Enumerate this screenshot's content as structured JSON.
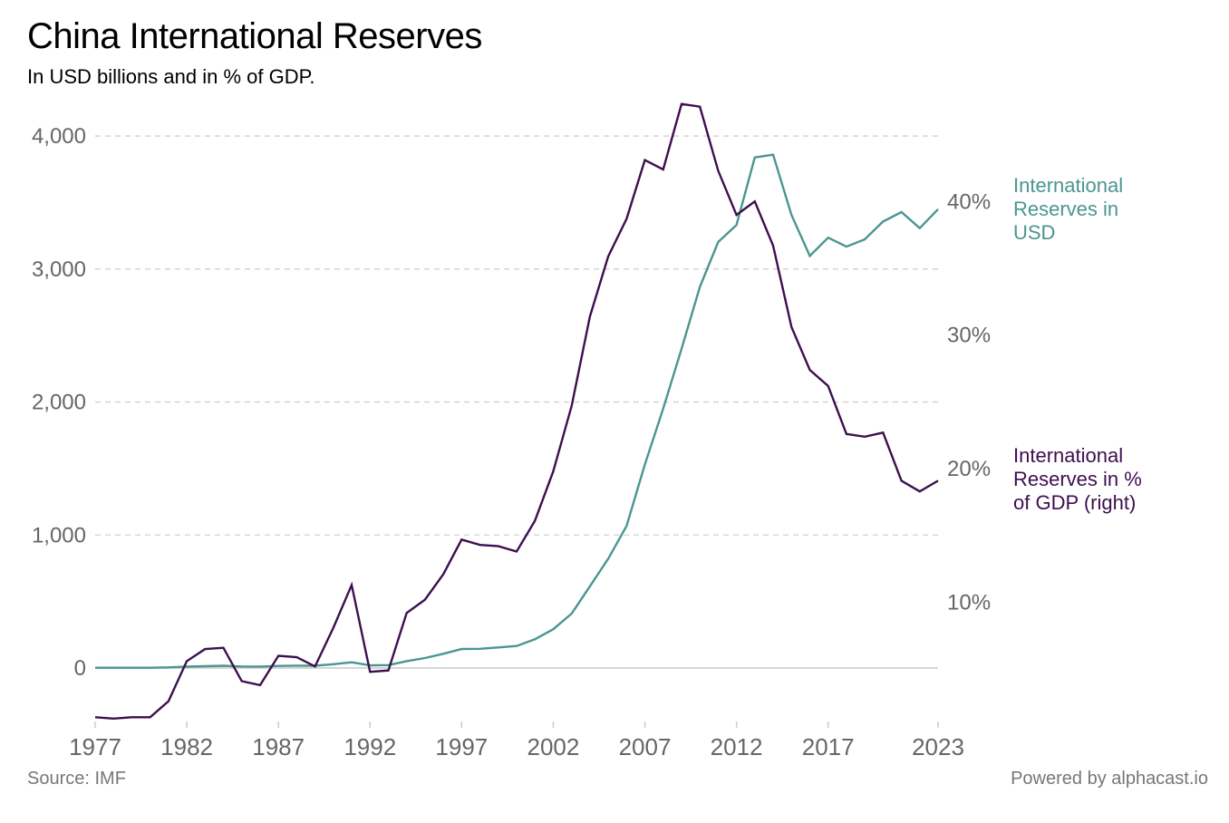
{
  "header": {
    "title": "China International Reserves",
    "subtitle": "In USD billions and in % of GDP."
  },
  "footer": {
    "source": "Source: IMF",
    "powered": "Powered by alphacast.io"
  },
  "chart_data": {
    "type": "line",
    "title": "China International Reserves",
    "subtitle": "In USD billions and in % of GDP.",
    "x": [
      1977,
      1978,
      1979,
      1980,
      1981,
      1982,
      1983,
      1984,
      1985,
      1986,
      1987,
      1988,
      1989,
      1990,
      1991,
      1992,
      1993,
      1994,
      1995,
      1996,
      1997,
      1998,
      1999,
      2000,
      2001,
      2002,
      2003,
      2004,
      2005,
      2006,
      2007,
      2008,
      2009,
      2010,
      2011,
      2012,
      2013,
      2014,
      2015,
      2016,
      2017,
      2018,
      2019,
      2020,
      2021,
      2022,
      2023
    ],
    "xticks": [
      "1977",
      "1982",
      "1987",
      "1992",
      "1997",
      "2002",
      "2007",
      "2012",
      "2017",
      "2023"
    ],
    "yticks": [
      {
        "v": 0,
        "label": "0"
      },
      {
        "v": 1000,
        "label": "1,000"
      },
      {
        "v": 2000,
        "label": "2,000"
      },
      {
        "v": 3000,
        "label": "3,000"
      },
      {
        "v": 4000,
        "label": "4,000"
      }
    ],
    "y2ticks": [
      {
        "v": 10,
        "label": "10%"
      },
      {
        "v": 20,
        "label": "20%"
      },
      {
        "v": 30,
        "label": "30%"
      },
      {
        "v": 40,
        "label": "40%"
      }
    ],
    "xlim": [
      1977,
      2023
    ],
    "ylim": [
      -395,
      4341
    ],
    "y2lim": [
      1.15,
      48.3
    ],
    "grid": "horizontal dashed",
    "legend_placement": "right, at line ends",
    "series": [
      {
        "name": "International Reserves in USD",
        "legend_lines": [
          "International",
          "Reserves in",
          "USD"
        ],
        "axis": "left",
        "color": "#4a9690",
        "values": [
          2,
          2,
          2,
          2,
          5,
          11,
          14,
          17,
          12,
          11,
          16,
          18,
          17,
          29,
          43,
          20,
          22,
          52,
          75,
          107,
          143,
          145,
          155,
          166,
          216,
          292,
          409,
          615,
          822,
          1068,
          1530,
          1950,
          2400,
          2866,
          3203,
          3331,
          3839,
          3859,
          3406,
          3098,
          3236,
          3168,
          3223,
          3357,
          3428,
          3307,
          3450
        ]
      },
      {
        "name": "International Reserves in % of GDP (right)",
        "legend_lines": [
          "International",
          "Reserves in %",
          "of GDP (right)"
        ],
        "axis": "right",
        "color": "#3d0f4f",
        "values": [
          1.4,
          1.3,
          1.4,
          1.4,
          2.6,
          5.6,
          6.5,
          6.6,
          4.1,
          3.8,
          6.0,
          5.9,
          5.2,
          8.1,
          11.3,
          4.8,
          4.9,
          9.2,
          10.2,
          12.1,
          14.7,
          14.3,
          14.2,
          13.8,
          16.1,
          19.8,
          24.7,
          31.4,
          35.9,
          38.7,
          43.1,
          42.4,
          47.3,
          47.1,
          42.3,
          39.0,
          40.0,
          36.7,
          30.6,
          27.4,
          26.2,
          22.6,
          22.4,
          22.7,
          19.1,
          18.3,
          19.1
        ]
      }
    ]
  }
}
